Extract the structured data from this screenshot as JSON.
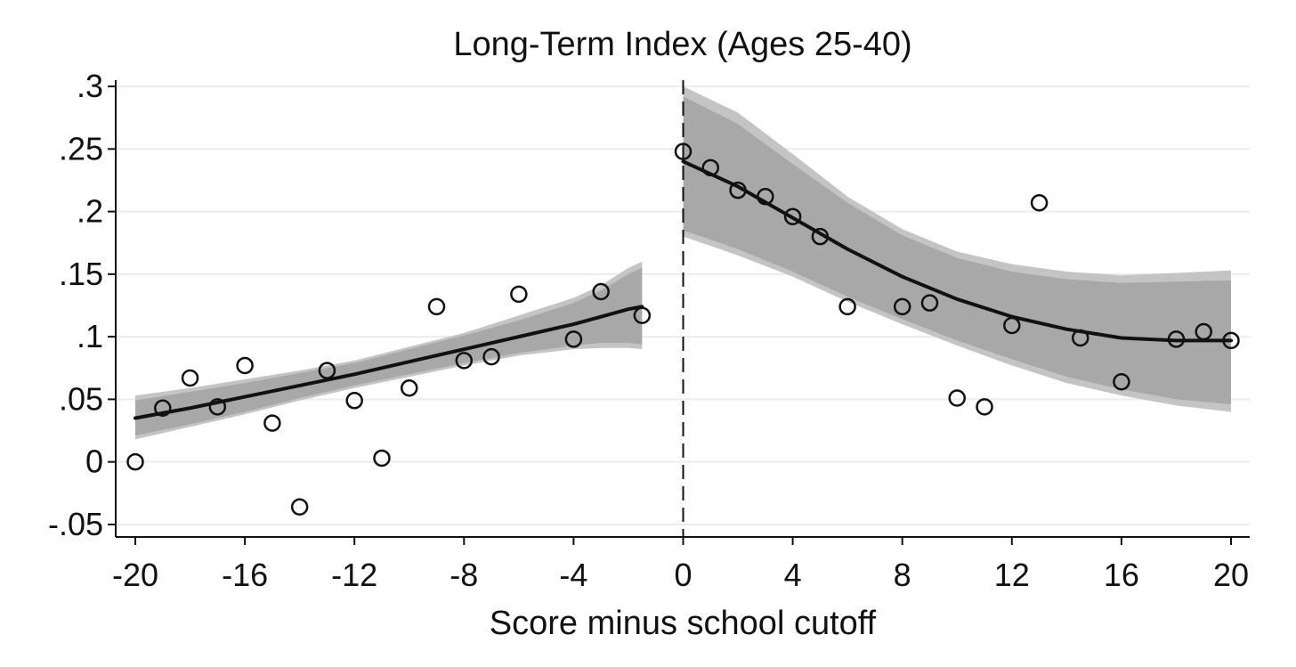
{
  "chart_data": {
    "type": "scatter",
    "title": "Long-Term Index (Ages 25-40)",
    "xlabel": "Score minus school cutoff",
    "ylabel": "",
    "xlim": [
      -20,
      20
    ],
    "ylim": [
      -0.06,
      0.305
    ],
    "xticks": [
      -20,
      -16,
      -12,
      -8,
      -4,
      0,
      4,
      8,
      12,
      16,
      20
    ],
    "xtick_labels": [
      "-20",
      "-16",
      "-12",
      "-8",
      "-4",
      "0",
      "4",
      "8",
      "12",
      "16",
      "20"
    ],
    "yticks": [
      -0.05,
      0,
      0.05,
      0.1,
      0.15,
      0.2,
      0.25,
      0.3
    ],
    "ytick_labels": [
      "-.05",
      "0",
      ".05",
      ".1",
      ".15",
      ".2",
      ".25",
      ".3"
    ],
    "grid": true,
    "cutoff_line": {
      "x": 0,
      "style": "dashed"
    },
    "colors": {
      "fit": "#111111",
      "ci_outer": "#c4c4c4",
      "ci_inner": "#a8a8a8",
      "grid": "#ececec",
      "marker": "#111111"
    },
    "series": [
      {
        "type": "scatter",
        "marker": "hollow-circle",
        "points": [
          [
            -20,
            0.0
          ],
          [
            -19,
            0.043
          ],
          [
            -18,
            0.067
          ],
          [
            -17,
            0.044
          ],
          [
            -16,
            0.077
          ],
          [
            -15,
            0.031
          ],
          [
            -14,
            -0.036
          ],
          [
            -13,
            0.073
          ],
          [
            -12,
            0.049
          ],
          [
            -11,
            0.003
          ],
          [
            -10,
            0.059
          ],
          [
            -9,
            0.124
          ],
          [
            -8,
            0.081
          ],
          [
            -7,
            0.084
          ],
          [
            -6,
            0.134
          ],
          [
            -4,
            0.098
          ],
          [
            -3,
            0.136
          ],
          [
            -1.5,
            0.117
          ],
          [
            0,
            0.248
          ],
          [
            1,
            0.235
          ],
          [
            2,
            0.217
          ],
          [
            3,
            0.212
          ],
          [
            4,
            0.196
          ],
          [
            5,
            0.18
          ],
          [
            6,
            0.124
          ],
          [
            8,
            0.124
          ],
          [
            9,
            0.127
          ],
          [
            10,
            0.051
          ],
          [
            11,
            0.044
          ],
          [
            12,
            0.109
          ],
          [
            13,
            0.207
          ],
          [
            14.5,
            0.099
          ],
          [
            16,
            0.064
          ],
          [
            18,
            0.098
          ],
          [
            19,
            0.104
          ],
          [
            20,
            0.097
          ]
        ]
      },
      {
        "type": "line",
        "segment": "left",
        "points": [
          [
            -20,
            0.035
          ],
          [
            -18,
            0.043
          ],
          [
            -16,
            0.052
          ],
          [
            -14,
            0.061
          ],
          [
            -12,
            0.07
          ],
          [
            -10,
            0.08
          ],
          [
            -8,
            0.09
          ],
          [
            -6,
            0.1
          ],
          [
            -4,
            0.11
          ],
          [
            -3,
            0.116
          ],
          [
            -2,
            0.122
          ],
          [
            -1.5,
            0.124
          ]
        ],
        "ci_outer": {
          "lower": [
            0.018,
            0.028,
            0.038,
            0.049,
            0.059,
            0.068,
            0.077,
            0.085,
            0.09,
            0.091,
            0.091,
            0.09
          ],
          "upper": [
            0.053,
            0.059,
            0.066,
            0.073,
            0.081,
            0.092,
            0.103,
            0.117,
            0.131,
            0.141,
            0.155,
            0.16
          ]
        },
        "ci_inner": {
          "lower": [
            0.021,
            0.03,
            0.04,
            0.051,
            0.061,
            0.07,
            0.079,
            0.087,
            0.093,
            0.095,
            0.095,
            0.094
          ],
          "upper": [
            0.049,
            0.056,
            0.063,
            0.071,
            0.079,
            0.09,
            0.101,
            0.113,
            0.127,
            0.137,
            0.15,
            0.155
          ]
        }
      },
      {
        "type": "line",
        "segment": "right",
        "points": [
          [
            0,
            0.24
          ],
          [
            2,
            0.22
          ],
          [
            4,
            0.195
          ],
          [
            6,
            0.17
          ],
          [
            8,
            0.148
          ],
          [
            10,
            0.13
          ],
          [
            12,
            0.116
          ],
          [
            14,
            0.106
          ],
          [
            16,
            0.099
          ],
          [
            18,
            0.097
          ],
          [
            20,
            0.097
          ]
        ],
        "ci_outer": {
          "lower": [
            0.18,
            0.165,
            0.148,
            0.128,
            0.11,
            0.093,
            0.077,
            0.063,
            0.053,
            0.045,
            0.04
          ],
          "upper": [
            0.3,
            0.279,
            0.246,
            0.212,
            0.186,
            0.168,
            0.158,
            0.152,
            0.149,
            0.151,
            0.153
          ]
        },
        "ci_inner": {
          "lower": [
            0.185,
            0.17,
            0.152,
            0.132,
            0.114,
            0.097,
            0.082,
            0.068,
            0.058,
            0.05,
            0.046
          ],
          "upper": [
            0.292,
            0.27,
            0.238,
            0.207,
            0.181,
            0.163,
            0.152,
            0.146,
            0.143,
            0.144,
            0.145
          ]
        }
      }
    ]
  }
}
